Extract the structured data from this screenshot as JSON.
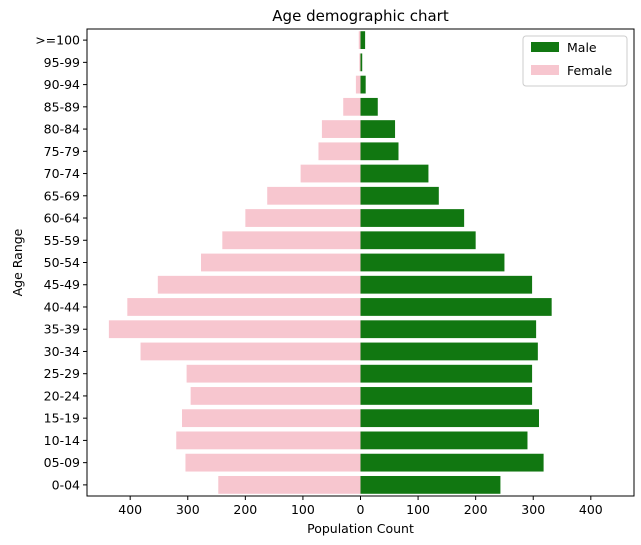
{
  "chart_data": {
    "type": "bar",
    "orientation": "horizontal",
    "title": "Age demographic chart",
    "xlabel": "Population Count",
    "ylabel": "Age Range",
    "xlim": [
      -475,
      475
    ],
    "xticks": [
      -400,
      -300,
      -200,
      -100,
      0,
      100,
      200,
      300,
      400
    ],
    "xtick_labels": [
      "400",
      "300",
      "200",
      "100",
      "0",
      "100",
      "200",
      "300",
      "400"
    ],
    "categories": [
      ">=100",
      "95-99",
      "90-94",
      "85-89",
      "80-84",
      "75-79",
      "70-74",
      "65-69",
      "60-64",
      "55-59",
      "50-54",
      "45-49",
      "40-44",
      "35-39",
      "30-34",
      "25-29",
      "20-24",
      "15-19",
      "10-14",
      "05-09",
      "0-04"
    ],
    "series": [
      {
        "name": "Male",
        "color": "#117711",
        "values": [
          8,
          3,
          9,
          30,
          60,
          66,
          118,
          136,
          180,
          200,
          250,
          298,
          332,
          305,
          308,
          298,
          298,
          310,
          290,
          318,
          243
        ]
      },
      {
        "name": "Female",
        "color": "#f7c6cf",
        "values": [
          -3,
          -2,
          -8,
          -30,
          -67,
          -73,
          -104,
          -162,
          -200,
          -240,
          -277,
          -352,
          -405,
          -437,
          -382,
          -302,
          -295,
          -310,
          -320,
          -304,
          -247
        ]
      }
    ],
    "legend": {
      "position": "top-right",
      "entries": [
        "Male",
        "Female"
      ]
    },
    "grid": false
  }
}
